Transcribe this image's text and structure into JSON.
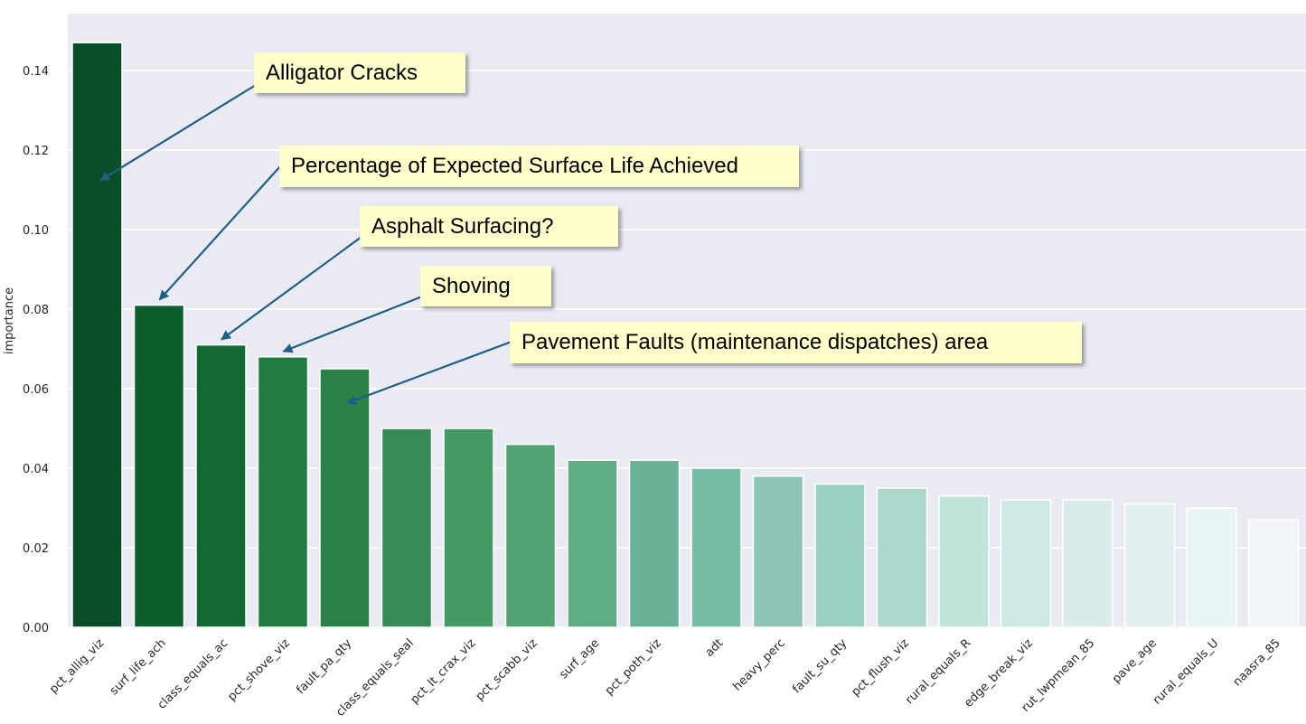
{
  "chart_data": {
    "type": "bar",
    "title": "",
    "xlabel": "",
    "ylabel": "importance",
    "ylim": [
      0,
      0.153
    ],
    "yticks": [
      0.0,
      0.02,
      0.04,
      0.06,
      0.08,
      0.1,
      0.12,
      0.14
    ],
    "ytick_labels": [
      "0.00",
      "0.02",
      "0.04",
      "0.06",
      "0.08",
      "0.10",
      "0.12",
      "0.14"
    ],
    "grid": true,
    "categories": [
      "pct_allig_viz",
      "surf_life_ach",
      "class_equals_ac",
      "pct_shove_viz",
      "fault_pa_qty",
      "class_equals_seal",
      "pct_lt_crax_viz",
      "pct_scabb_viz",
      "surf_age",
      "pct_poth_viz",
      "adt",
      "heavy_perc",
      "fault_su_qty",
      "pct_flush_viz",
      "rural_equals_R",
      "edge_break_viz",
      "rut_lwpmean_85",
      "pave_age",
      "rural_equals_U",
      "naasra_85"
    ],
    "values": [
      0.147,
      0.081,
      0.071,
      0.068,
      0.065,
      0.05,
      0.05,
      0.046,
      0.042,
      0.042,
      0.04,
      0.038,
      0.036,
      0.035,
      0.033,
      0.032,
      0.032,
      0.031,
      0.03,
      0.027
    ],
    "colors": [
      "#0b4d26",
      "#0e5e2c",
      "#136b33",
      "#217a3e",
      "#2b8249",
      "#388a56",
      "#459963",
      "#52a273",
      "#5fac85",
      "#68b195",
      "#78bca6",
      "#8bc4b5",
      "#9ccfc4",
      "#acd8d0",
      "#c0e4da",
      "#cee8e3",
      "#d9ebea",
      "#e1eff0",
      "#e9f4f5",
      "#f0f6f8"
    ],
    "annotations": [
      {
        "text": "Alligator Cracks",
        "target_index": 0,
        "target_value": 0.111
      },
      {
        "text": "Percentage of Expected Surface Life Achieved",
        "target_index": 1,
        "target_value": 0.081
      },
      {
        "text": "Asphalt Surfacing?",
        "target_index": 2,
        "target_value": 0.071
      },
      {
        "text": "Shoving",
        "target_index": 3,
        "target_value": 0.068
      },
      {
        "text": "Pavement Faults (maintenance dispatches) area",
        "target_index": 4,
        "target_value": 0.055
      }
    ]
  }
}
